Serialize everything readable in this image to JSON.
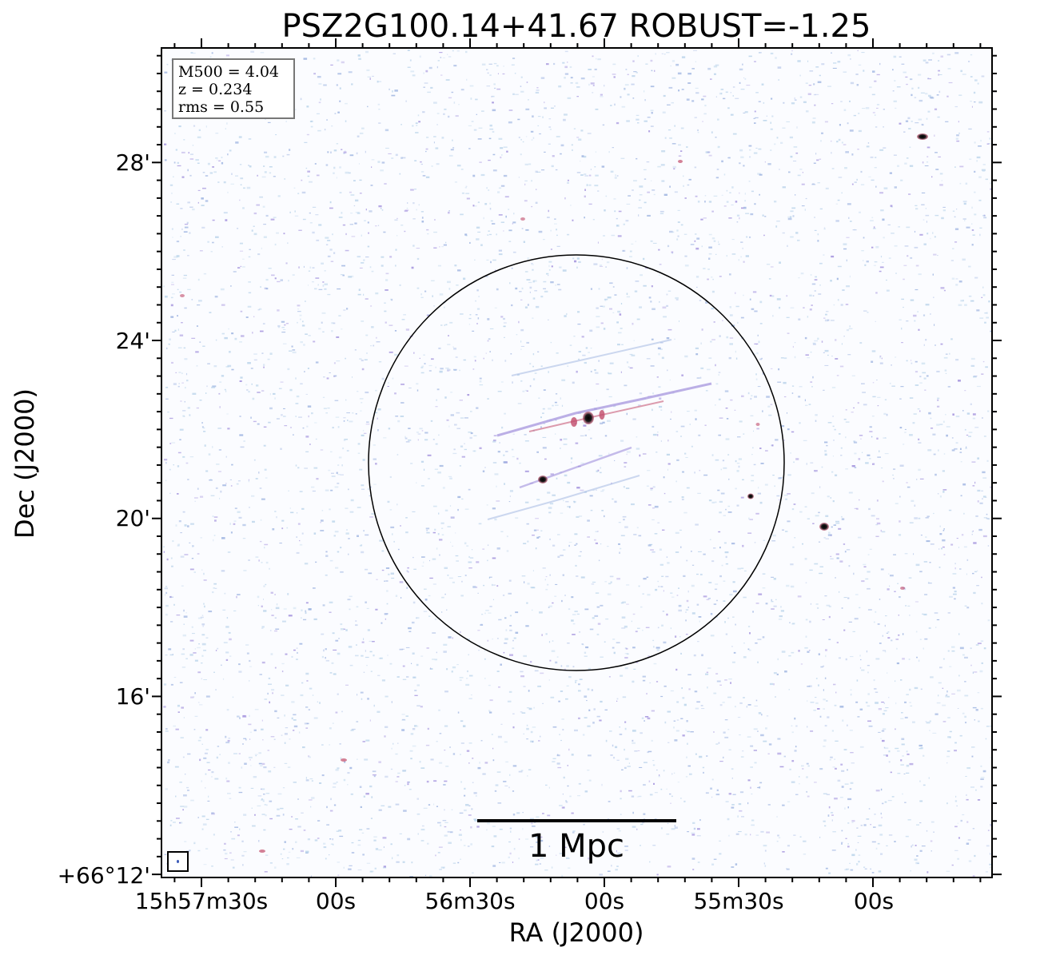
{
  "chart_data": {
    "type": "radio-map",
    "title": "PSZ2G100.14+41.67 ROBUST=-1.25",
    "xlabel": "RA (J2000)",
    "ylabel": "Dec (J2000)",
    "x_tick_labels": [
      "15h57m30s",
      "00s",
      "56m30s",
      "00s",
      "55m30s",
      "00s"
    ],
    "y_tick_labels": [
      "28'",
      "24'",
      "20'",
      "16'",
      "+66°12'"
    ],
    "info": {
      "m500": "M500 = 4.04",
      "z": "z = 0.234",
      "rms": "rms = 0.55"
    },
    "scale_bar_label": "1 Mpc",
    "colors": {
      "noise_light": "#b9d3ea",
      "noise_mid": "#9bb2e0",
      "noise_purple": "#a08fdc",
      "source_red": "#c24b6a",
      "source_core": "#111111"
    }
  }
}
